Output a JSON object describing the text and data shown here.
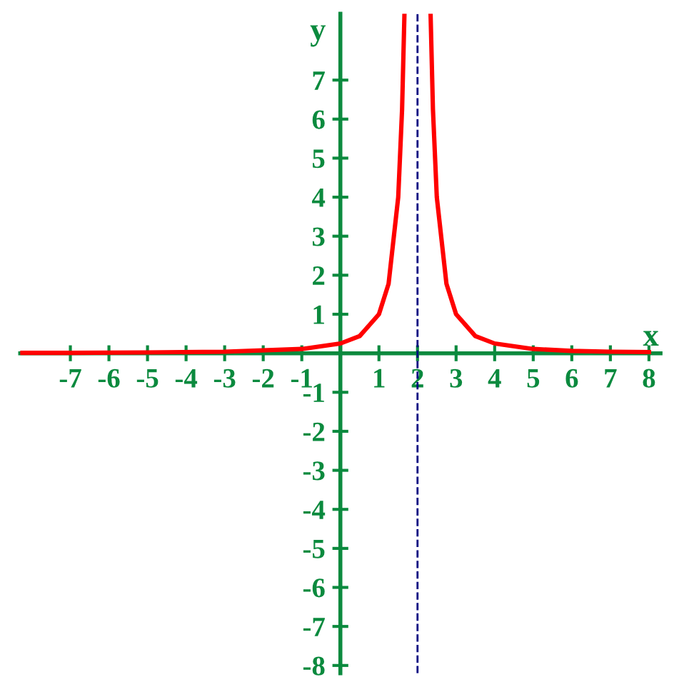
{
  "chart_data": {
    "type": "line",
    "xlabel": "x",
    "ylabel": "y",
    "x": [
      -8.3,
      -7,
      -5,
      -3,
      -1,
      0,
      0.5,
      1,
      1.25,
      1.5,
      1.6,
      1.66,
      2,
      2.34,
      2.4,
      2.5,
      2.75,
      3,
      3.5,
      4,
      5,
      6,
      7,
      8
    ],
    "series": [
      {
        "color": "#ff0000",
        "values": [
          0.01,
          0.01,
          0.02,
          0.04,
          0.11,
          0.25,
          0.44,
          1,
          1.78,
          4,
          6.25,
          8.65,
          null,
          8.65,
          6.25,
          4,
          1.78,
          1,
          0.44,
          0.25,
          0.11,
          0.06,
          0.04,
          0.03
        ]
      }
    ],
    "xlim": [
      -8.3,
      8.3
    ],
    "ylim": [
      -8.2,
      8.7
    ],
    "xticks": [
      -7,
      -6,
      -5,
      -4,
      -3,
      -2,
      -1,
      1,
      2,
      3,
      4,
      5,
      6,
      7,
      8
    ],
    "yticks": [
      -8,
      -7,
      -6,
      -5,
      -4,
      -3,
      -2,
      -1,
      1,
      2,
      3,
      4,
      5,
      6,
      7
    ],
    "ref_lines": [
      {
        "axis": "x",
        "value": 2,
        "color": "#000080",
        "line_style": "dashed"
      }
    ],
    "grid": false,
    "legend": false,
    "marker": "none",
    "line_style": "solid"
  }
}
